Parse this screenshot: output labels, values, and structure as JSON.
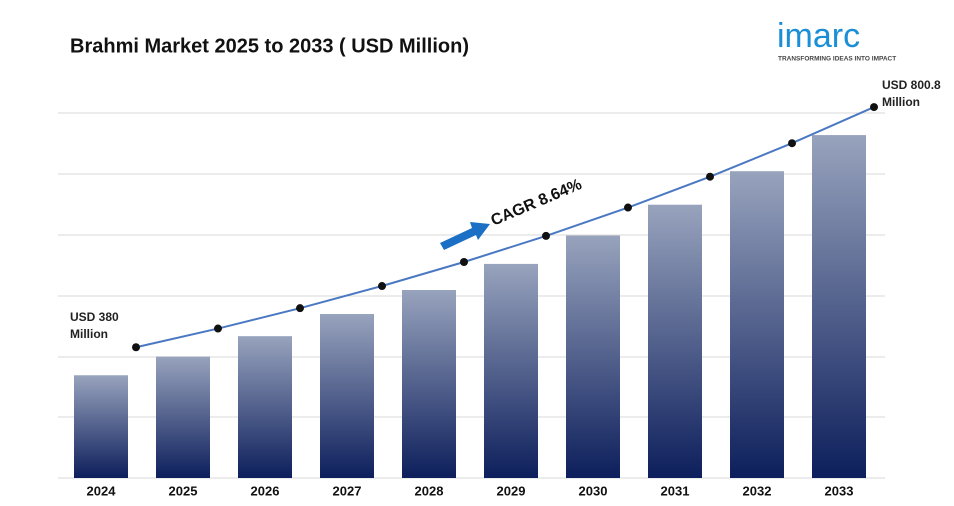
{
  "chart_data": {
    "type": "bar_line",
    "title": "Brahmi Market 2025 to 2033 ( USD Million)",
    "categories": [
      "2024",
      "2025",
      "2026",
      "2027",
      "2028",
      "2029",
      "2030",
      "2031",
      "2032",
      "2033"
    ],
    "values": [
      380,
      412.8,
      448.5,
      487.3,
      529.4,
      575.1,
      624.8,
      678.8,
      737.5,
      800.8
    ],
    "value_labels": [
      "USD 380 Million",
      null,
      null,
      null,
      null,
      null,
      null,
      null,
      null,
      "USD 800.8 Million"
    ],
    "annotation": "CAGR  8.64%",
    "color": "#0d1f5c",
    "line_color": "#4a78c2",
    "ylim": [
      200,
      850
    ]
  },
  "brand": {
    "name": "imarc",
    "tagline": "TRANSFORMING IDEAS INTO IMPACT"
  }
}
